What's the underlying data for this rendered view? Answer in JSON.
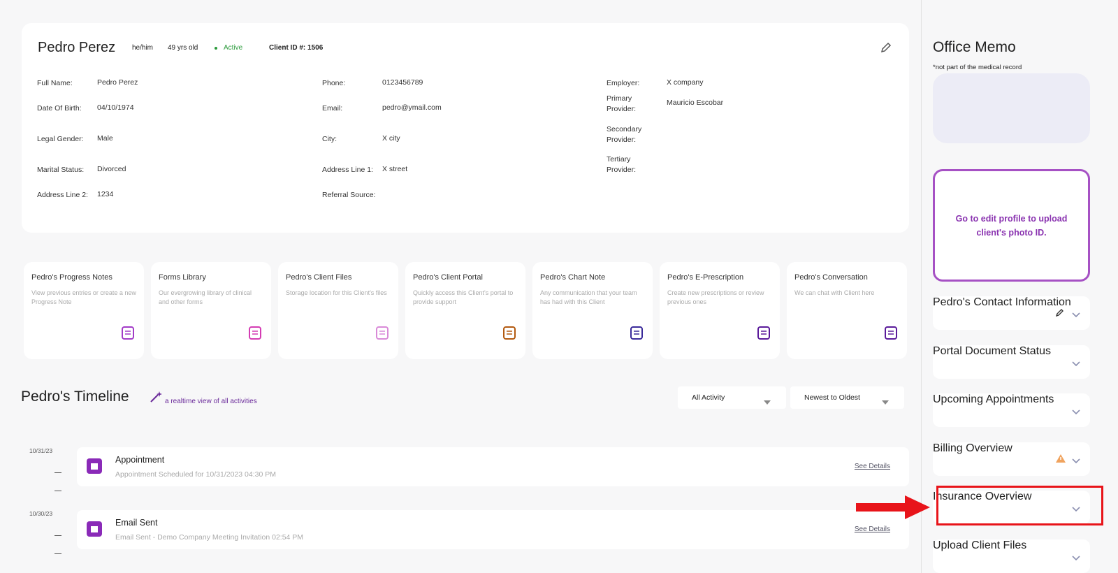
{
  "header": {
    "name": "Pedro Perez",
    "pronouns": "he/him",
    "age": "49 yrs old",
    "status": "Active",
    "client_id": "Client ID #: 1506"
  },
  "fields": [
    [
      {
        "label": "Full Name:",
        "value": "Pedro Perez"
      },
      {
        "label": "Date Of Birth:",
        "value": "04/10/1974"
      },
      {
        "label": "Legal Gender:",
        "value": "Male"
      },
      {
        "label": "Marital Status:",
        "value": "Divorced"
      },
      {
        "label": "Address Line 2:",
        "value": "1234"
      }
    ],
    [
      {
        "label": "Phone:",
        "value": "0123456789"
      },
      {
        "label": "Email:",
        "value": "pedro@ymail.com"
      },
      {
        "label": "City:",
        "value": "X city"
      },
      {
        "label": "Address Line 1:",
        "value": "X street"
      },
      {
        "label": "Referral Source:"
      }
    ],
    [
      {
        "label": "Employer:",
        "value": "X company"
      },
      {
        "label": "Primary Provider:",
        "value": "Mauricio Escobar"
      },
      {
        "label": "Secondary Provider:"
      },
      {
        "label": "Tertiary Provider:"
      }
    ]
  ],
  "cards": [
    {
      "title": "Pedro's Progress Notes",
      "desc": "View previous entries or create a new Progress Note"
    },
    {
      "title": "Forms Library",
      "desc": "Our evergrowing library of clinical and other forms"
    },
    {
      "title": "Pedro's Client Files",
      "desc": "Storage location for this Client's files"
    },
    {
      "title": "Pedro's Client Portal",
      "desc": "Quickly access this Client's portal to provide support"
    },
    {
      "title": "Pedro's Chart Note",
      "desc": "Any communication that your team has had with this Client"
    },
    {
      "title": "Pedro's E-Prescription",
      "desc": "Create new prescriptions or review previous ones"
    },
    {
      "title": "Pedro's Conversation",
      "desc": "We can chat with Client here"
    }
  ],
  "timeline": {
    "title": "Pedro's Timeline",
    "subtitle": "a realtime view of all activities",
    "filters": [
      "All Activity",
      "Newest to Oldest"
    ],
    "entries": [
      {
        "date": "10/31/23",
        "title": "Appointment",
        "desc": "Appointment Scheduled for 10/31/2023 04:30 PM",
        "link": "See Details"
      },
      {
        "date": "10/30/23",
        "title": "Email Sent",
        "desc": "Email Sent - Demo Company Meeting Invitation 02:54 PM",
        "link": "See Details"
      }
    ]
  },
  "sidebar": {
    "title": "Office Memo",
    "note": "*not part of the medical record",
    "photo_text": "Go to edit profile to upload client's photo ID.",
    "sections": [
      "Pedro's Contact Information",
      "Portal Document Status",
      "Upcoming Appointments",
      "Billing Overview",
      "Insurance Overview",
      "Upload Client Files"
    ]
  }
}
